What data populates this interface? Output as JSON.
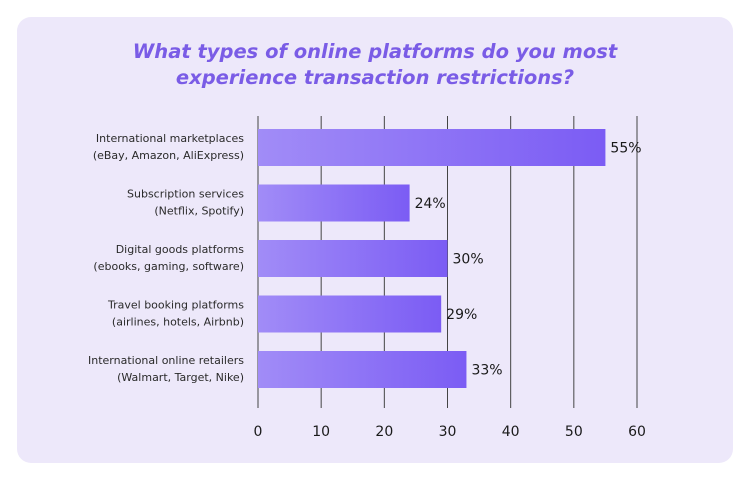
{
  "colors": {
    "card": "#ede8fa",
    "title": "#7a5ce6",
    "bar_start": "#a18cf7",
    "bar_end": "#7b5cf4",
    "grid": "#444444"
  },
  "chart_data": {
    "type": "bar",
    "orientation": "horizontal",
    "title_lines": [
      "What types of online platforms do you most",
      "experience transaction restrictions?"
    ],
    "categories": [
      [
        "International marketplaces",
        "(eBay, Amazon, AliExpress)"
      ],
      [
        "Subscription services",
        "(Netflix, Spotify)"
      ],
      [
        "Digital goods platforms",
        "(ebooks, gaming, software)"
      ],
      [
        "Travel booking platforms",
        "(airlines, hotels, Airbnb)"
      ],
      [
        "International online retailers",
        "(Walmart, Target, Nike)"
      ]
    ],
    "values": [
      55,
      24,
      30,
      29,
      33
    ],
    "value_labels": [
      "55%",
      "24%",
      "30%",
      "29%",
      "33%"
    ],
    "xticks": [
      0,
      10,
      20,
      30,
      40,
      50,
      60
    ],
    "xlim": [
      0,
      60
    ],
    "grid": true
  }
}
